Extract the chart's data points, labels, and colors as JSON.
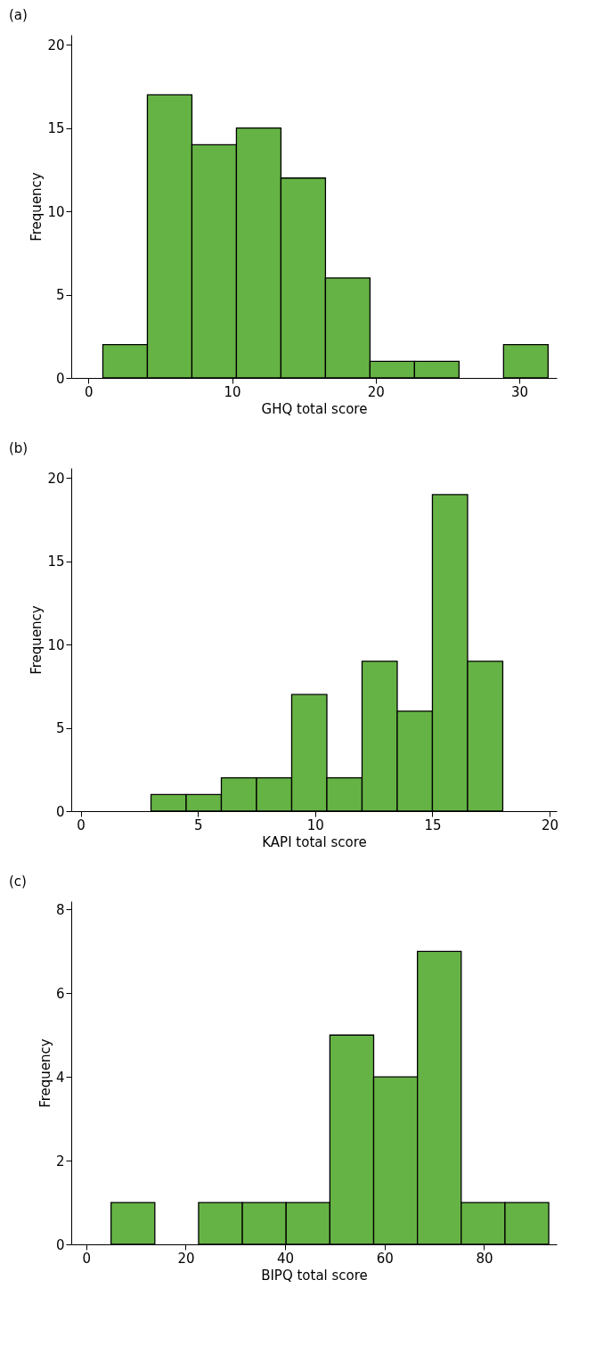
{
  "chart_data": [
    {
      "type": "histogram",
      "title": "(a)",
      "xlabel": "GHQ total score",
      "ylabel": "Frequency",
      "color": "#66b345",
      "bins": [
        1,
        4.1,
        7.2,
        10.3,
        13.4,
        16.5,
        19.6,
        22.7,
        25.8,
        28.9,
        32
      ],
      "values": [
        2,
        17,
        14,
        15,
        12,
        6,
        1,
        1,
        0,
        2
      ],
      "xlim": [
        -1.2,
        32.6
      ],
      "xticks": [
        0,
        10,
        20,
        30
      ],
      "ylim": [
        0,
        20.6
      ],
      "yticks": [
        0,
        5,
        10,
        15,
        20
      ],
      "grid": false
    },
    {
      "type": "histogram",
      "title": "(b)",
      "xlabel": "KAPI total score",
      "ylabel": "Frequency",
      "color": "#66b345",
      "bins": [
        3,
        4.5,
        6,
        7.5,
        9,
        10.5,
        12,
        13.5,
        15,
        16.5,
        18
      ],
      "values": [
        1,
        1,
        2,
        2,
        7,
        2,
        9,
        6,
        19,
        9
      ],
      "xlim": [
        -0.4,
        20.3
      ],
      "xticks": [
        0,
        5,
        10,
        15,
        20
      ],
      "ylim": [
        0,
        20.6
      ],
      "yticks": [
        0,
        5,
        10,
        15,
        20
      ],
      "grid": false
    },
    {
      "type": "histogram",
      "title": "(c)",
      "xlabel": "BIPQ total score",
      "ylabel": "Frequency",
      "color": "#66b345",
      "bins": [
        5,
        13.8,
        22.6,
        31.4,
        40.2,
        49,
        57.8,
        66.6,
        75.4,
        84.2,
        93
      ],
      "values": [
        1,
        0,
        1,
        1,
        1,
        5,
        4,
        7,
        1,
        1
      ],
      "xlim": [
        -3,
        94.6
      ],
      "xticks": [
        0,
        20,
        40,
        60,
        80
      ],
      "ylim": [
        0,
        8.2
      ],
      "yticks": [
        0,
        2,
        4,
        6,
        8
      ],
      "grid": false
    }
  ]
}
